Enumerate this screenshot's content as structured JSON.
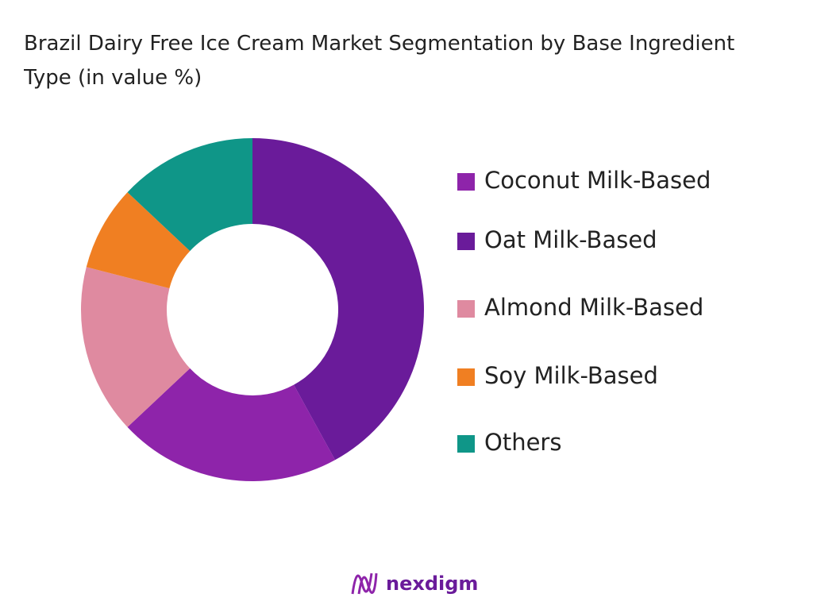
{
  "chart_data": {
    "type": "donut",
    "title": "Brazil Dairy Free Ice Cream Market Segmentation by Base Ingredient Type (in value %)",
    "categories": [
      "Coconut Milk-Based",
      "Oat Milk-Based",
      "Almond Milk-Based",
      "Soy Milk-Based",
      "Others"
    ],
    "values": [
      21,
      42,
      16,
      8,
      13
    ],
    "colors": [
      "#8e24aa",
      "#6a1b9a",
      "#df8aa0",
      "#f07f22",
      "#0f9688"
    ],
    "legend": "right"
  },
  "brand": "nexdigm"
}
